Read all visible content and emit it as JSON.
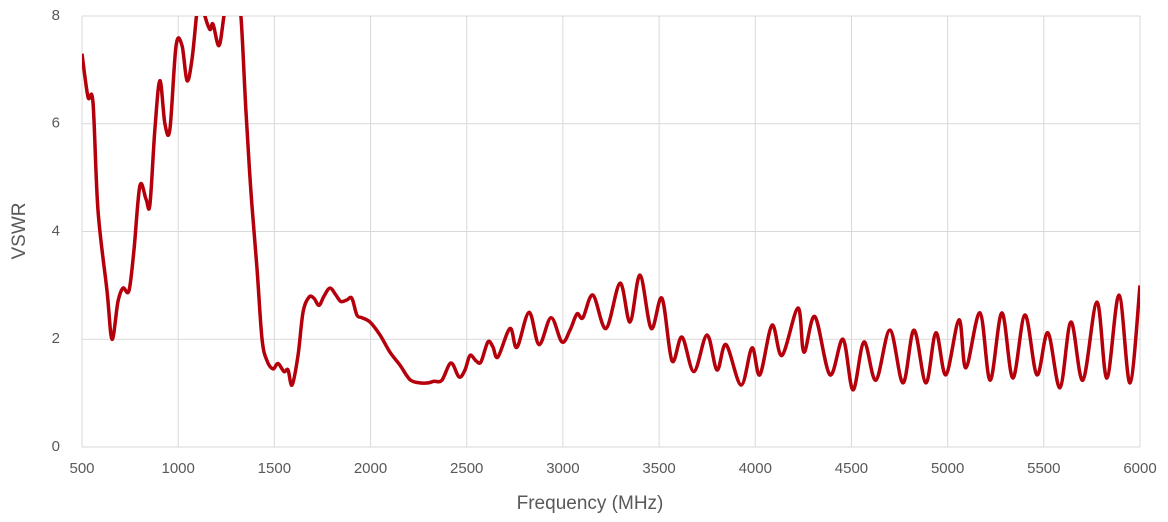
{
  "chart_data": {
    "type": "line",
    "xlabel": "Frequency (MHz)",
    "ylabel": "VSWR",
    "color": "#b5000b",
    "grid": true,
    "xlim": [
      500,
      6000
    ],
    "xticks": [
      500,
      1000,
      1500,
      2000,
      2500,
      3000,
      3500,
      4000,
      4500,
      5000,
      5500,
      6000
    ],
    "ylim": [
      0,
      8
    ],
    "yticks": [
      0,
      2,
      4,
      6,
      8
    ],
    "x": [
      500,
      531,
      557,
      583,
      630,
      656,
      687,
      713,
      744,
      770,
      801,
      833,
      853,
      879,
      905,
      931,
      957,
      989,
      1020,
      1046,
      1072,
      1098,
      1113,
      1139,
      1165,
      1181,
      1212,
      1238,
      1269,
      1305,
      1326,
      1352,
      1378,
      1410,
      1436,
      1462,
      1493,
      1519,
      1550,
      1571,
      1592,
      1623,
      1649,
      1680,
      1706,
      1732,
      1758,
      1789,
      1820,
      1846,
      1877,
      1903,
      1929,
      1955,
      1997,
      2049,
      2101,
      2153,
      2205,
      2257,
      2299,
      2330,
      2371,
      2418,
      2460,
      2491,
      2517,
      2548,
      2574,
      2610,
      2636,
      2662,
      2725,
      2761,
      2824,
      2876,
      2938,
      2995,
      3037,
      3073,
      3104,
      3156,
      3224,
      3297,
      3349,
      3401,
      3459,
      3515,
      3567,
      3619,
      3681,
      3749,
      3801,
      3848,
      3926,
      3983,
      4024,
      4087,
      4139,
      4222,
      4253,
      4310,
      4388,
      4456,
      4508,
      4565,
      4627,
      4700,
      4768,
      4825,
      4887,
      4939,
      4991,
      5059,
      5095,
      5168,
      5221,
      5282,
      5339,
      5402,
      5464,
      5521,
      5584,
      5641,
      5703,
      5776,
      5828,
      5891,
      5948,
      6000
    ],
    "values": [
      7.3,
      6.5,
      6.4,
      4.4,
      2.9,
      2.0,
      2.7,
      2.95,
      2.9,
      3.65,
      4.85,
      4.6,
      4.5,
      5.9,
      6.8,
      6.0,
      5.9,
      7.45,
      7.45,
      6.8,
      7.2,
      8.1,
      8.4,
      8.0,
      7.75,
      7.85,
      7.45,
      8.0,
      8.7,
      8.2,
      8.0,
      6.25,
      4.75,
      3.3,
      2.0,
      1.6,
      1.45,
      1.55,
      1.4,
      1.43,
      1.15,
      1.7,
      2.5,
      2.78,
      2.76,
      2.63,
      2.8,
      2.95,
      2.82,
      2.7,
      2.73,
      2.76,
      2.45,
      2.4,
      2.32,
      2.08,
      1.76,
      1.52,
      1.25,
      1.19,
      1.19,
      1.22,
      1.24,
      1.56,
      1.3,
      1.43,
      1.7,
      1.6,
      1.58,
      1.95,
      1.86,
      1.67,
      2.2,
      1.85,
      2.5,
      1.9,
      2.4,
      1.95,
      2.17,
      2.47,
      2.4,
      2.82,
      2.2,
      3.04,
      2.32,
      3.19,
      2.2,
      2.76,
      1.6,
      2.04,
      1.4,
      2.08,
      1.43,
      1.9,
      1.15,
      1.84,
      1.34,
      2.26,
      1.7,
      2.58,
      1.76,
      2.42,
      1.34,
      2.0,
      1.06,
      1.95,
      1.24,
      2.17,
      1.19,
      2.17,
      1.19,
      2.12,
      1.34,
      2.36,
      1.47,
      2.49,
      1.24,
      2.49,
      1.28,
      2.45,
      1.34,
      2.12,
      1.1,
      2.32,
      1.24,
      2.69,
      1.28,
      2.82,
      1.19,
      3.0
    ]
  }
}
